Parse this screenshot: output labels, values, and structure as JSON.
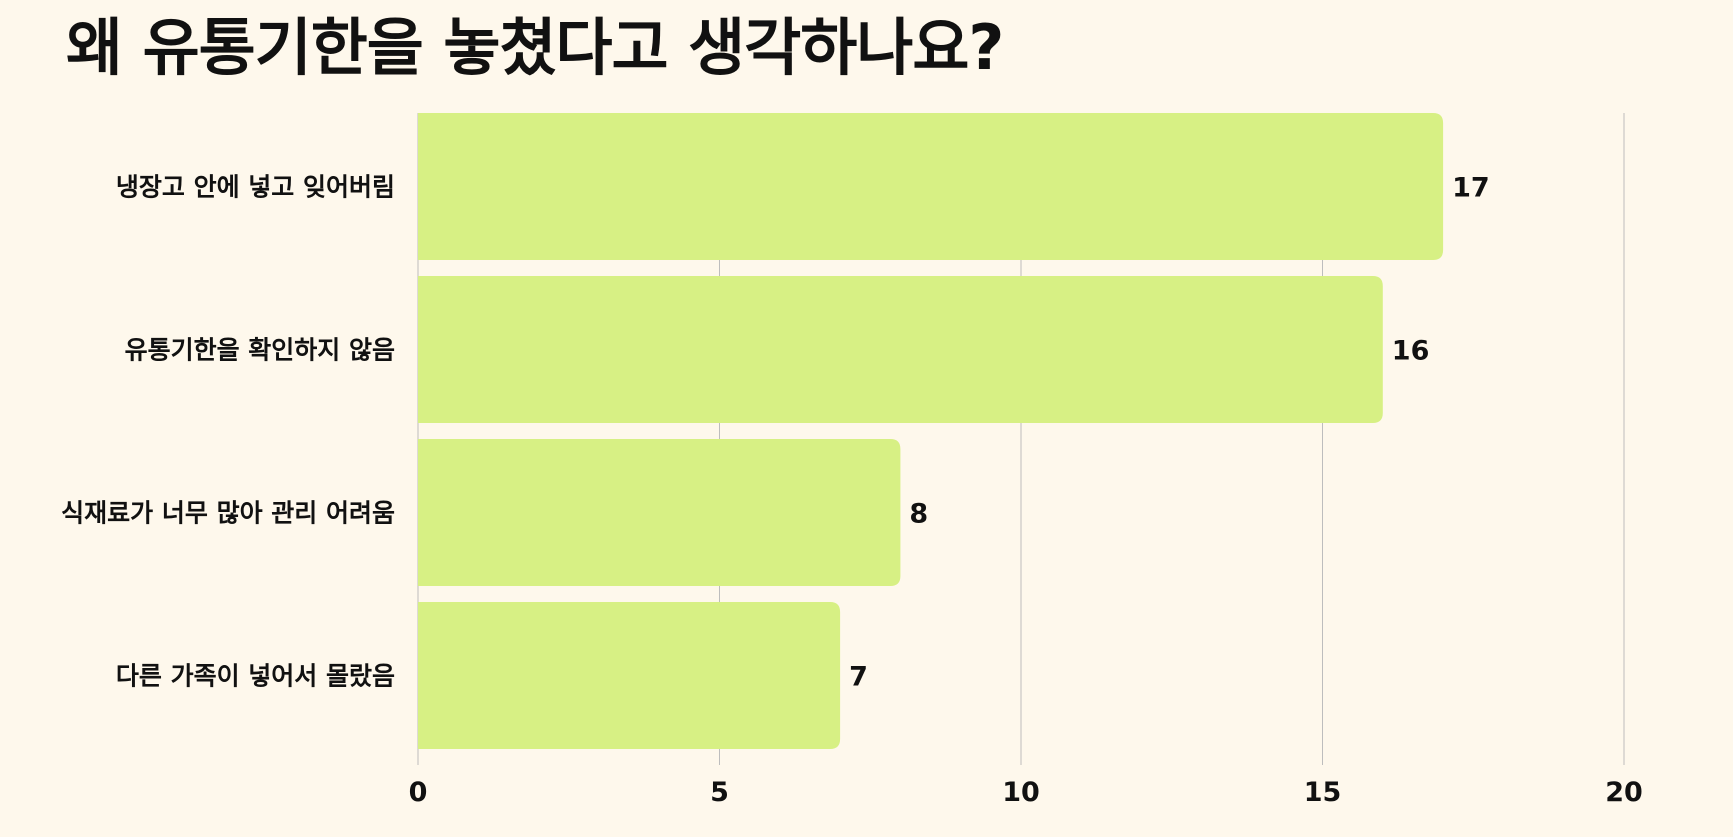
{
  "chart_data": {
    "type": "bar",
    "orientation": "horizontal",
    "title": "왜 유통기한을 놓쳤다고 생각하나요?",
    "categories": [
      "냉장고 안에 넣고 잊어버림",
      "유통기한을 확인하지 않음",
      "식재료가 너무 많아 관리 어려움",
      "다른 가족이 넣어서 몰랐음"
    ],
    "values": [
      17,
      16,
      8,
      7
    ],
    "xlim": [
      0,
      20
    ],
    "xticks": [
      0,
      5,
      10,
      15,
      20
    ],
    "grid": true,
    "legend": "none",
    "bar_color": "#d7f084",
    "grid_color": "#bdbdbd",
    "background_color": "#fef8ec",
    "text_color": "#111111"
  }
}
